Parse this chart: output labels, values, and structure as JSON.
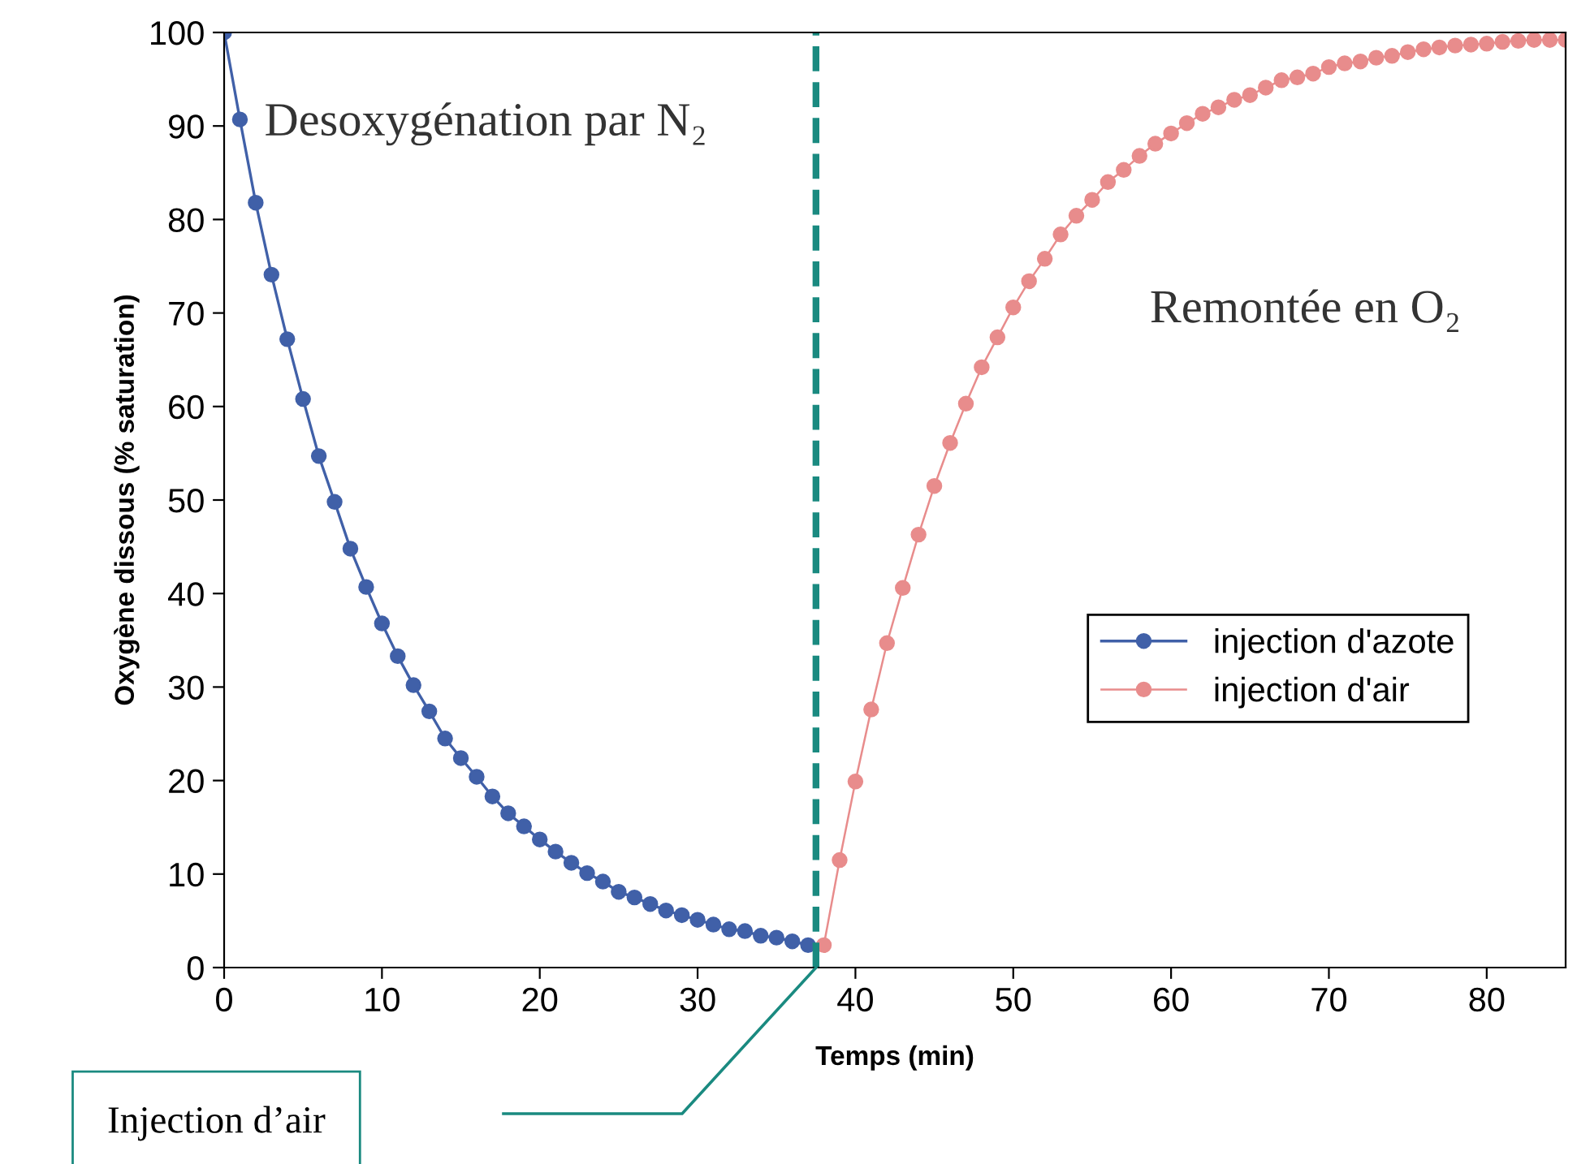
{
  "chart_data": {
    "type": "line",
    "xlabel": "Temps (min)",
    "ylabel": "Oxygène dissous (% saturation)",
    "xlim": [
      0,
      85
    ],
    "xticks": [
      0,
      10,
      20,
      30,
      40,
      50,
      60,
      70,
      80
    ],
    "ylim": [
      0,
      100
    ],
    "yticks": [
      0,
      10,
      20,
      30,
      40,
      50,
      60,
      70,
      80,
      90,
      100
    ],
    "grid": false,
    "legend": "right",
    "marker": "circle",
    "line_style": "solid",
    "series": [
      {
        "name": "injection d'azote",
        "color": "#4060a8",
        "x": [
          0,
          1,
          2,
          3,
          4,
          5,
          6,
          7,
          8,
          9,
          10,
          11,
          12,
          13,
          14,
          15,
          16,
          17,
          18,
          19,
          20,
          21,
          22,
          23,
          24,
          25,
          26,
          27,
          28,
          29,
          30,
          31,
          32,
          33,
          34,
          35,
          36,
          37
        ],
        "values": [
          100,
          90.7,
          81.8,
          74.1,
          67.2,
          60.8,
          54.7,
          49.8,
          44.8,
          40.7,
          36.8,
          33.3,
          30.2,
          27.4,
          24.5,
          22.4,
          20.4,
          18.3,
          16.5,
          15.1,
          13.7,
          12.4,
          11.2,
          10.1,
          9.2,
          8.1,
          7.5,
          6.8,
          6.1,
          5.6,
          5.1,
          4.6,
          4.1,
          3.9,
          3.4,
          3.2,
          2.8,
          2.4
        ]
      },
      {
        "name": "injection d'air",
        "color": "#e88c8c",
        "x": [
          38,
          39,
          40,
          41,
          42,
          43,
          44,
          45,
          46,
          47,
          48,
          49,
          50,
          51,
          52,
          53,
          54,
          55,
          56,
          57,
          58,
          59,
          60,
          61,
          62,
          63,
          64,
          65,
          66,
          67,
          68,
          69,
          70,
          71,
          72,
          73,
          74,
          75,
          76,
          77,
          78,
          79,
          80,
          81,
          82,
          83,
          84,
          85
        ],
        "values": [
          2.4,
          11.5,
          19.9,
          27.6,
          34.7,
          40.6,
          46.3,
          51.5,
          56.1,
          60.3,
          64.2,
          67.4,
          70.6,
          73.4,
          75.8,
          78.4,
          80.4,
          82.1,
          84.0,
          85.3,
          86.8,
          88.1,
          89.2,
          90.3,
          91.3,
          92.0,
          92.8,
          93.3,
          94.1,
          94.9,
          95.2,
          95.6,
          96.3,
          96.7,
          96.9,
          97.3,
          97.5,
          97.9,
          98.2,
          98.4,
          98.6,
          98.7,
          98.8,
          99.0,
          99.1,
          99.2,
          99.2,
          99.2
        ]
      }
    ],
    "ref_lines": [
      {
        "axis": "x",
        "value": 37.5,
        "color": "#1a8a80",
        "line_style": "dashed"
      }
    ],
    "annotations": [
      "Desoxygénation par N₂",
      "Remontée en O₂",
      "Injection d’air"
    ]
  }
}
